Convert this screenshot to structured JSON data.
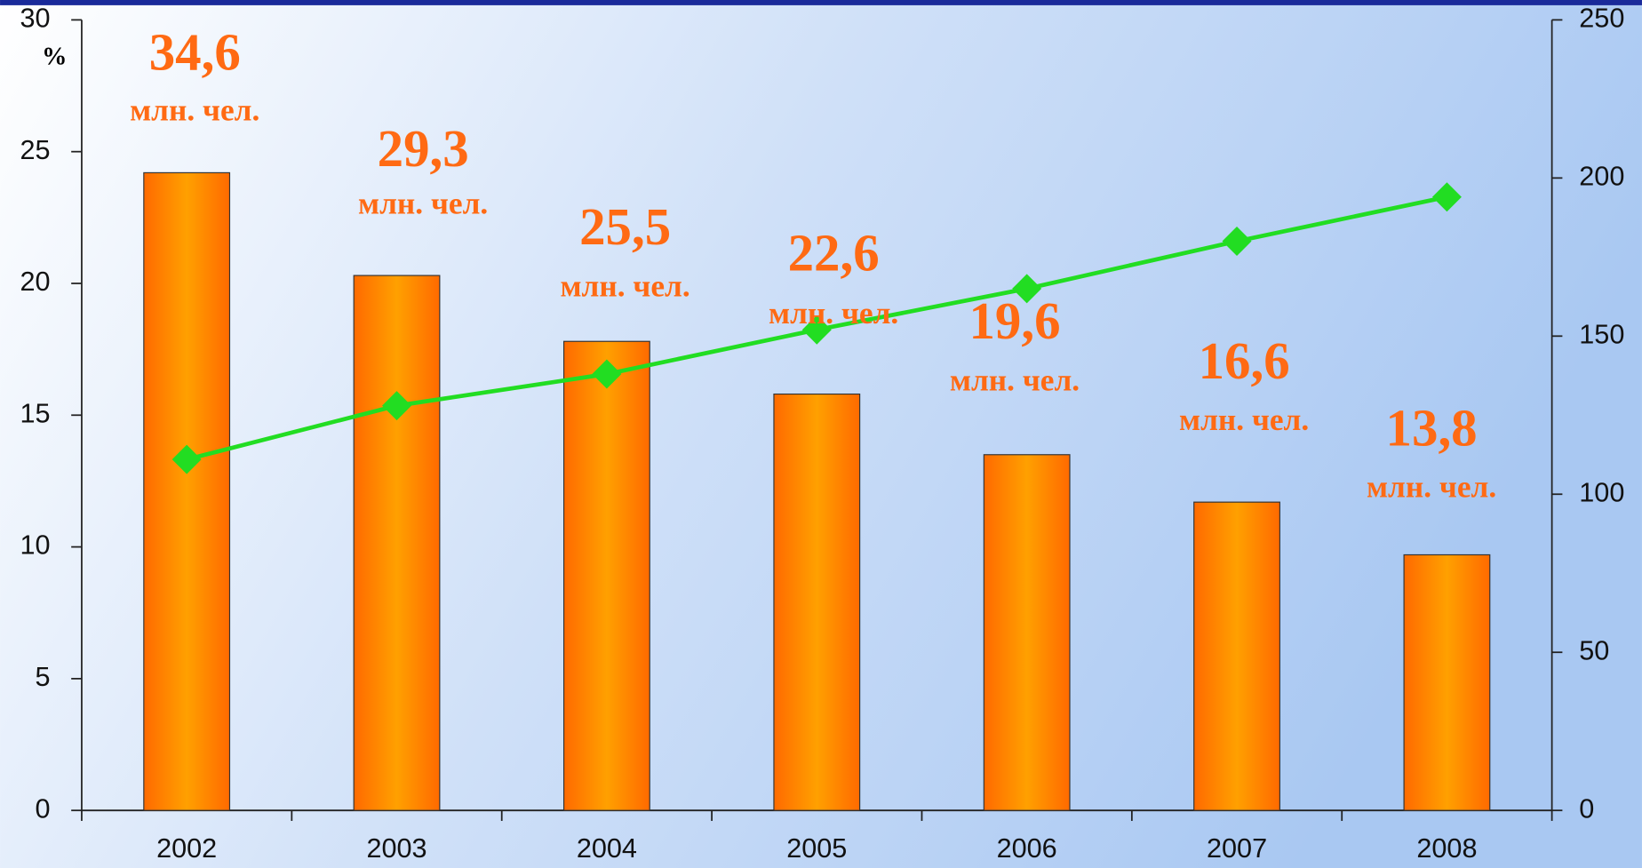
{
  "chart_data": {
    "type": "bar_line",
    "y_axis_label": "%",
    "categories": [
      "2002",
      "2003",
      "2004",
      "2005",
      "2006",
      "2007",
      "2008"
    ],
    "series": [
      {
        "type": "bar",
        "color": "#ff8c00",
        "values": [
          24.2,
          20.3,
          17.8,
          15.8,
          13.5,
          11.7,
          9.7
        ]
      },
      {
        "type": "line",
        "axis": "y2",
        "color": "#22dd22",
        "values": [
          111,
          128,
          138,
          152,
          165,
          180,
          194
        ]
      }
    ],
    "annotations": [
      {
        "text": "34,6",
        "unit": "млн. чел."
      },
      {
        "text": "29,3",
        "unit": "млн. чел."
      },
      {
        "text": "25,5",
        "unit": "млн. чел."
      },
      {
        "text": "22,6",
        "unit": "млн. чел."
      },
      {
        "text": "19,6",
        "unit": "млн. чел."
      },
      {
        "text": "16,6",
        "unit": "млн. чел."
      },
      {
        "text": "13,8",
        "unit": "млн. чел."
      }
    ],
    "ylim": [
      0,
      30
    ],
    "yticks": [
      0,
      5,
      10,
      15,
      20,
      25,
      30
    ],
    "y2lim": [
      0,
      250
    ],
    "y2ticks": [
      0,
      50,
      100,
      150,
      200,
      250
    ]
  }
}
